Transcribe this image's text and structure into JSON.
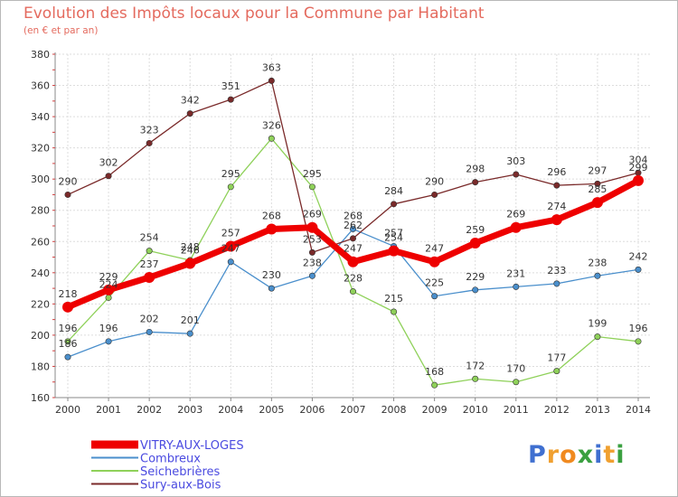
{
  "header": {
    "title": "Evolution des Impôts locaux pour la Commune par Habitant",
    "subtitle": "(en € et par an)"
  },
  "chart_data": {
    "type": "line",
    "title": "Evolution des Impôts locaux pour la Commune par Habitant",
    "subtitle": "(en € et par an)",
    "xlabel": "",
    "ylabel": "",
    "x": [
      "2000",
      "2001",
      "2002",
      "2003",
      "2004",
      "2005",
      "2006",
      "2007",
      "2008",
      "2009",
      "2010",
      "2011",
      "2012",
      "2013",
      "2014"
    ],
    "ylim": [
      160,
      380
    ],
    "yticks": [
      160,
      180,
      200,
      220,
      240,
      260,
      280,
      300,
      320,
      340,
      360,
      380
    ],
    "grid": true,
    "legend_position": "bottom-left",
    "series": [
      {
        "name": "VITRY-AUX-LOGES",
        "color": "#ee0000",
        "values": [
          218,
          229,
          237,
          246,
          257,
          268,
          269,
          247,
          254,
          247,
          259,
          269,
          274,
          285,
          299
        ]
      },
      {
        "name": "Combreux",
        "color": "#4a8fcc",
        "values": [
          186,
          196,
          202,
          201,
          247,
          230,
          238,
          268,
          257,
          225,
          229,
          231,
          233,
          238,
          242
        ]
      },
      {
        "name": "Seichebrières",
        "color": "#8fd15a",
        "values": [
          196,
          224,
          254,
          248,
          295,
          326,
          295,
          228,
          215,
          168,
          172,
          170,
          177,
          199,
          196
        ]
      },
      {
        "name": "Sury-aux-Bois",
        "color": "#7a2a2a",
        "values": [
          290,
          302,
          323,
          342,
          351,
          363,
          253,
          262,
          284,
          290,
          298,
          303,
          296,
          297,
          304
        ]
      }
    ]
  },
  "logo": {
    "text": "Proxiti",
    "letter_colors": [
      "#3f6fd0",
      "#f0a030",
      "#f08a20",
      "#3aa040",
      "#3f6fd0",
      "#f0a030",
      "#3aa040"
    ]
  }
}
